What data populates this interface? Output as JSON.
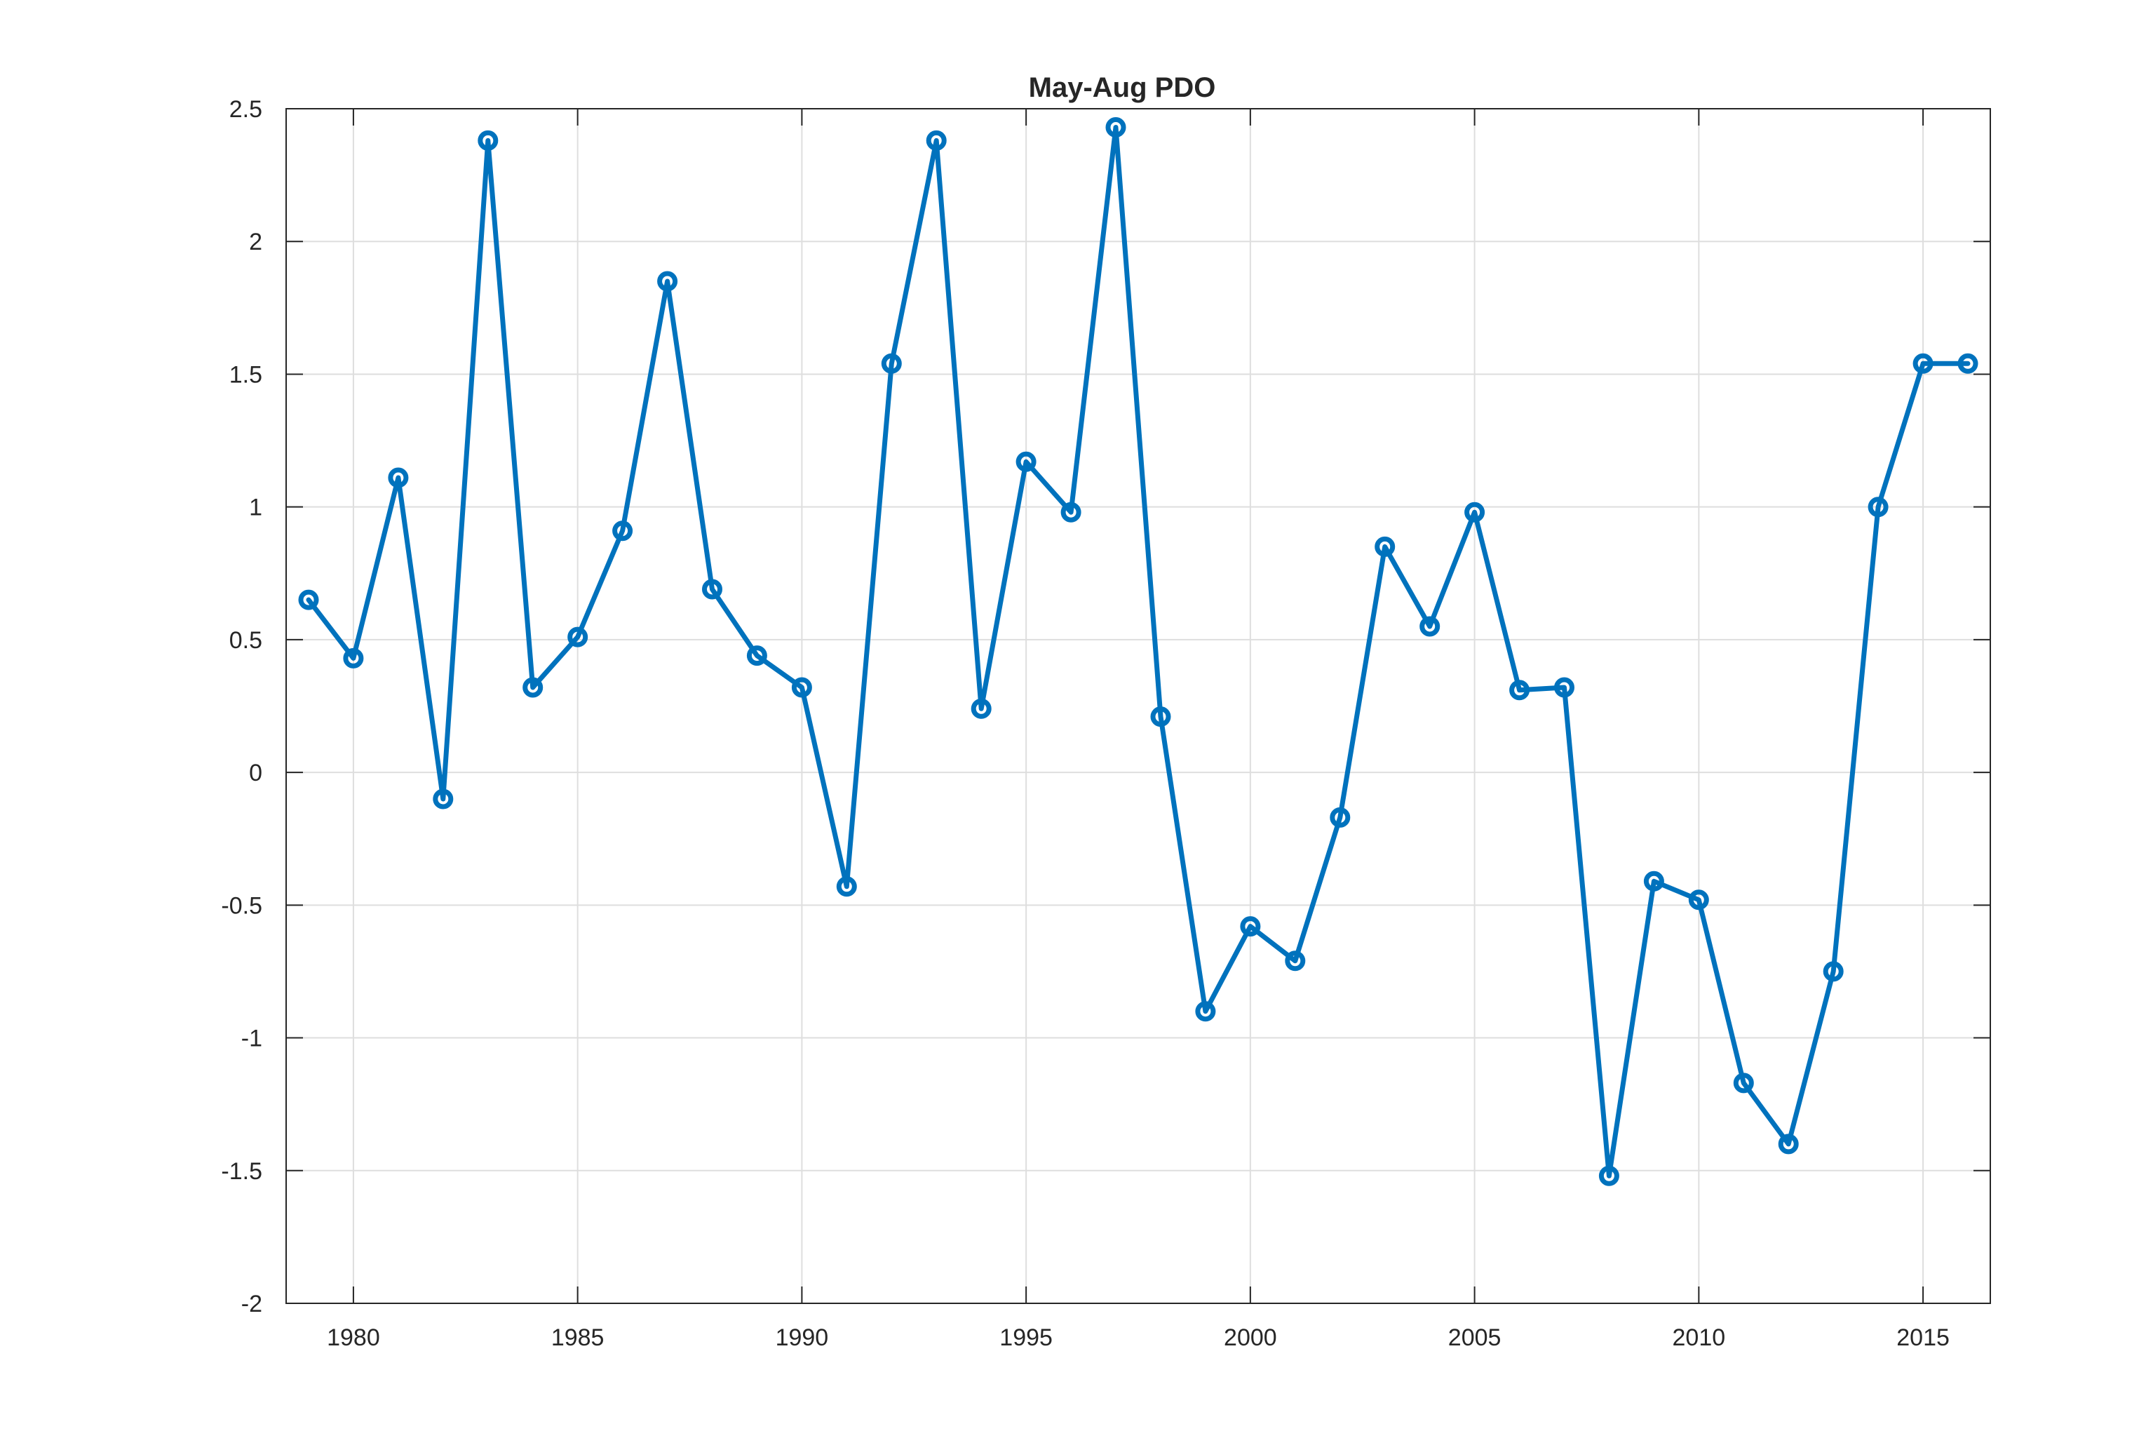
{
  "chart_data": {
    "type": "line",
    "title": "May-Aug PDO",
    "xlabel": "",
    "ylabel": "",
    "xlim": [
      1978.5,
      2016.5
    ],
    "ylim": [
      -2,
      2.5
    ],
    "grid": true,
    "legend": "none",
    "x_ticks": [
      1980,
      1985,
      1990,
      1995,
      2000,
      2005,
      2010,
      2015
    ],
    "x_tick_labels": [
      "1980",
      "1985",
      "1990",
      "1995",
      "2000",
      "2005",
      "2010",
      "2015"
    ],
    "y_ticks": [
      -2,
      -1.5,
      -1,
      -0.5,
      0,
      0.5,
      1,
      1.5,
      2,
      2.5
    ],
    "y_tick_labels": [
      "-2",
      "-1.5",
      "-1",
      "-0.5",
      "0",
      "0.5",
      "1",
      "1.5",
      "2",
      "2.5"
    ],
    "series": [
      {
        "color": "#0072BD",
        "marker": "circle",
        "x": [
          1979,
          1980,
          1981,
          1982,
          1983,
          1984,
          1985,
          1986,
          1987,
          1988,
          1989,
          1990,
          1991,
          1992,
          1993,
          1994,
          1995,
          1996,
          1997,
          1998,
          1999,
          2000,
          2001,
          2002,
          2003,
          2004,
          2005,
          2006,
          2007,
          2008,
          2009,
          2010,
          2011,
          2012,
          2013,
          2014,
          2015,
          2016
        ],
        "y": [
          0.65,
          0.43,
          1.11,
          -0.1,
          2.38,
          0.32,
          0.51,
          0.91,
          1.85,
          0.69,
          0.44,
          0.32,
          -0.43,
          1.54,
          2.38,
          0.24,
          1.17,
          0.98,
          2.43,
          0.21,
          -0.9,
          -0.58,
          -0.71,
          -0.17,
          0.85,
          0.55,
          0.98,
          0.31,
          0.32,
          -1.52,
          -0.41,
          -0.48,
          -1.17,
          -1.4,
          -0.75,
          1.0,
          1.54,
          1.54
        ]
      }
    ]
  }
}
